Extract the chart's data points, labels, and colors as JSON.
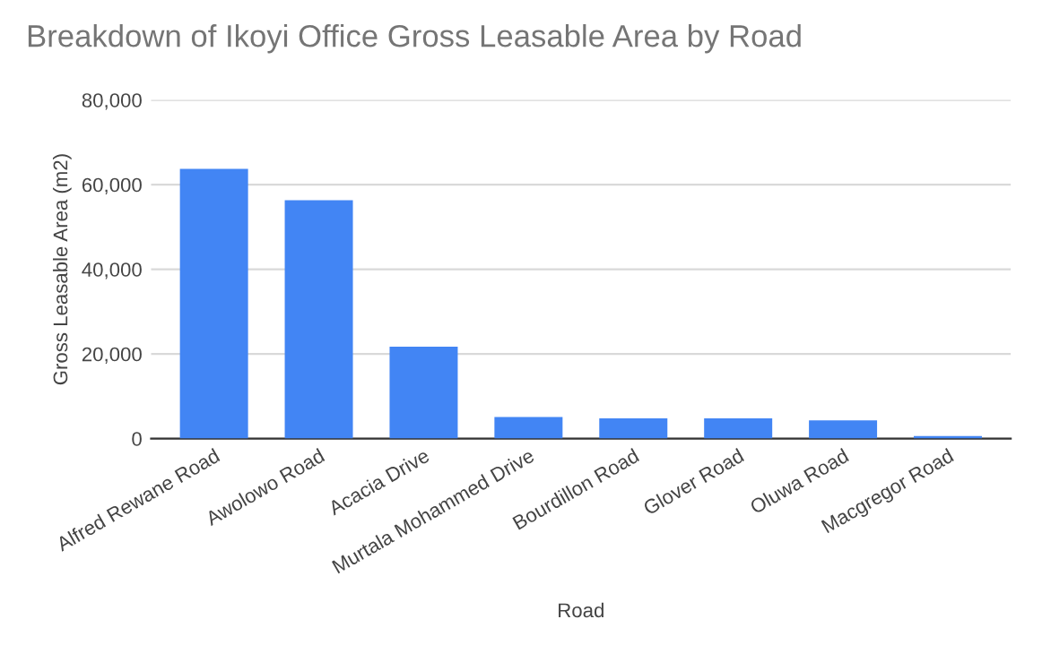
{
  "chart_data": {
    "type": "bar",
    "title": "Breakdown of Ikoyi Office Gross Leasable Area by Road",
    "xlabel": "Road",
    "ylabel": "Gross Leasable Area (m2)",
    "categories": [
      "Alfred Rewane Road",
      "Awolowo Road",
      "Acacia Drive",
      "Murtala Mohammed Drive",
      "Bourdillon Road",
      "Glover Road",
      "Oluwa Road",
      "Macgregor Road"
    ],
    "values": [
      63700,
      56300,
      21700,
      5100,
      4800,
      4800,
      4300,
      600
    ],
    "color": "#4285f4",
    "ylim": [
      0,
      80000
    ],
    "yticks": [
      {
        "value": 0,
        "label": "0"
      },
      {
        "value": 20000,
        "label": "20,000"
      },
      {
        "value": 40000,
        "label": "40,000"
      },
      {
        "value": 60000,
        "label": "60,000"
      },
      {
        "value": 80000,
        "label": "80,000"
      }
    ],
    "grid": "y"
  }
}
